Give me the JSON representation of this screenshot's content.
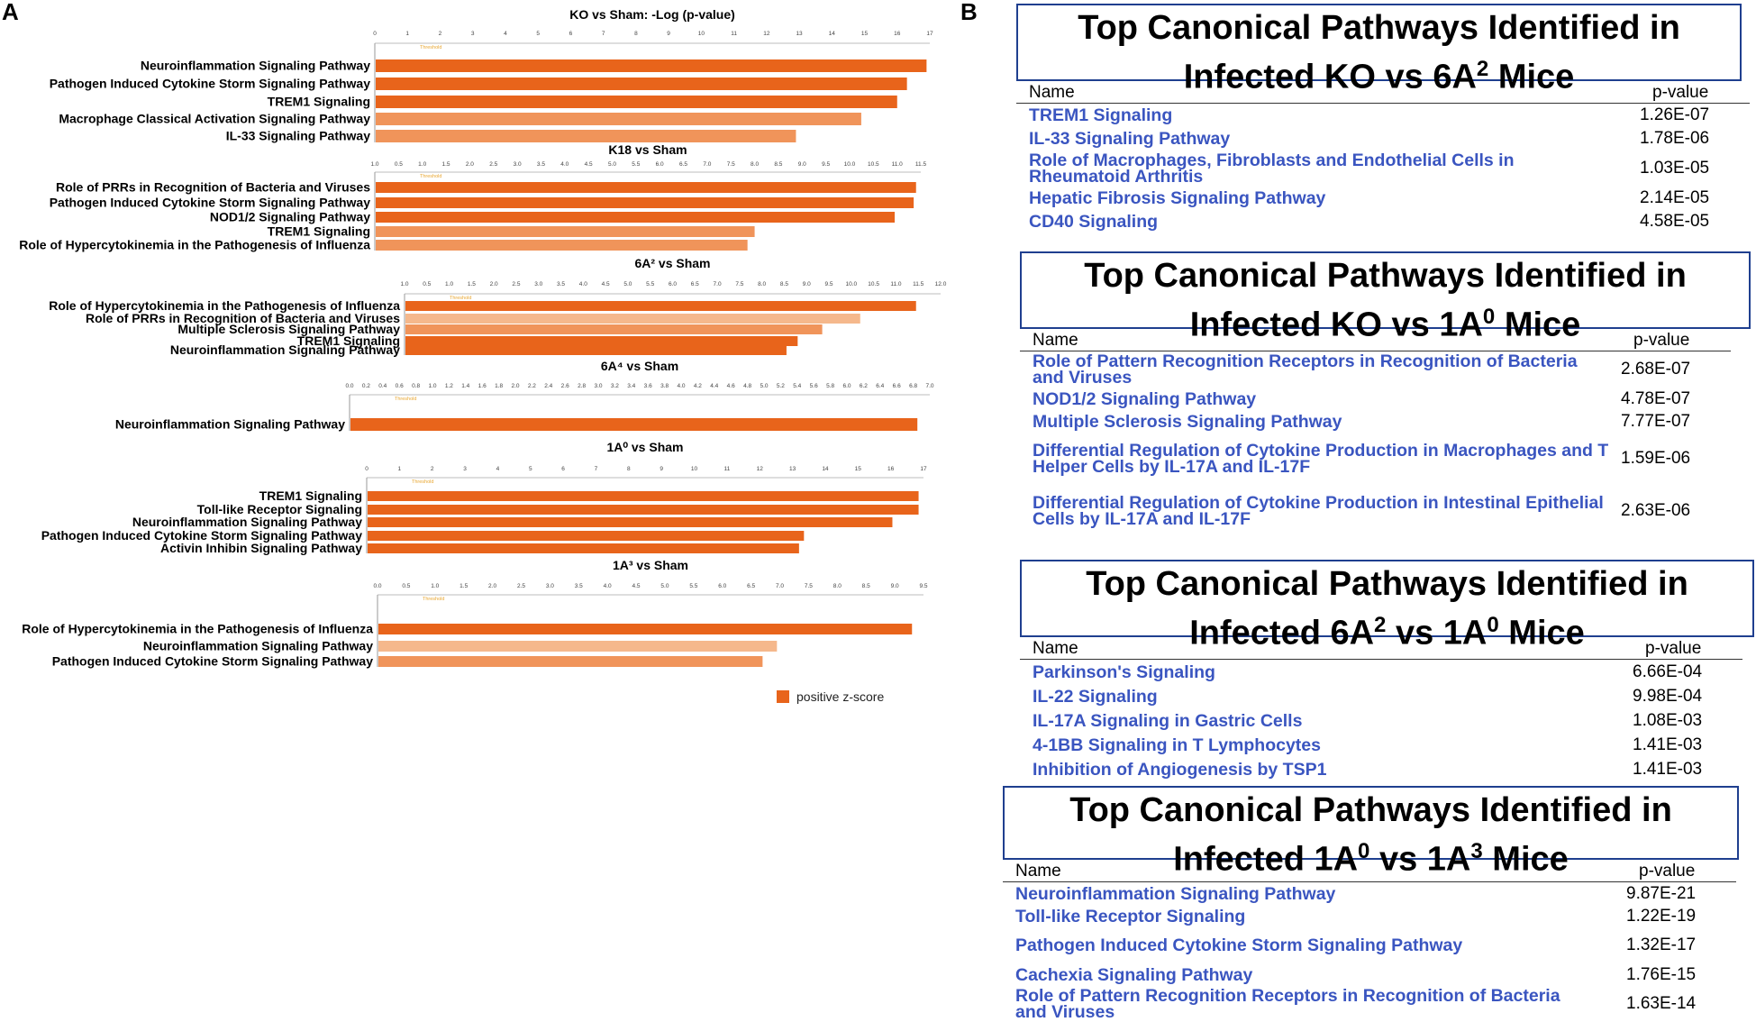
{
  "panel_a_letter": "A",
  "panel_b_letter": "B",
  "legend": {
    "label": "positive z-score",
    "color": "#E8641B"
  },
  "threshold_label": "Threshold",
  "chart_data": [
    {
      "type": "bar",
      "title": "KO vs Sham: -Log (p-value)",
      "ticks": [
        "0",
        "1",
        "2",
        "3",
        "4",
        "5",
        "6",
        "7",
        "8",
        "9",
        "10",
        "11",
        "12",
        "13",
        "14",
        "15",
        "16",
        "17"
      ],
      "xlim": [
        0,
        17
      ],
      "categories": [
        "Neuroinflammation Signaling Pathway",
        "Pathogen Induced Cytokine Storm Signaling Pathway",
        "TREM1 Signaling",
        "Macrophage Classical Activation Signaling Pathway",
        "IL-33 Signaling Pathway"
      ],
      "values": [
        16.9,
        16.3,
        16.0,
        14.9,
        12.9
      ],
      "colors": [
        "#E8641B",
        "#E8641B",
        "#E8641B",
        "#F0945A",
        "#F0945A"
      ]
    },
    {
      "type": "bar",
      "title": "K18 vs Sham",
      "ticks": [
        "1.0",
        "0.5",
        "1.0",
        "1.5",
        "2.0",
        "2.5",
        "3.0",
        "3.5",
        "4.0",
        "4.5",
        "5.0",
        "5.5",
        "6.0",
        "6.5",
        "7.0",
        "7.5",
        "8.0",
        "8.5",
        "9.0",
        "9.5",
        "10.0",
        "10.5",
        "11.0",
        "11.5"
      ],
      "xlim": [
        0,
        11.5
      ],
      "categories": [
        "Role of PRRs in Recognition of Bacteria and Viruses",
        "Pathogen Induced Cytokine Storm Signaling Pathway",
        "NOD1/2 Signaling Pathway",
        "TREM1 Signaling",
        "Role of Hypercytokinemia in the Pathogenesis of Influenza"
      ],
      "values": [
        11.4,
        11.35,
        10.95,
        8.0,
        7.85
      ],
      "colors": [
        "#E8641B",
        "#E8641B",
        "#E8641B",
        "#F0945A",
        "#F0945A"
      ]
    },
    {
      "type": "bar",
      "title": "6A² vs Sham",
      "ticks": [
        "1.0",
        "0.5",
        "1.0",
        "1.5",
        "2.0",
        "2.5",
        "3.0",
        "3.5",
        "4.0",
        "4.5",
        "5.0",
        "5.5",
        "6.0",
        "6.5",
        "7.0",
        "7.5",
        "8.0",
        "8.5",
        "9.0",
        "9.5",
        "10.0",
        "10.5",
        "11.0",
        "11.5",
        "12.0"
      ],
      "xlim": [
        0,
        12
      ],
      "categories": [
        "Role of Hypercytokinemia in the Pathogenesis of Influenza",
        "Role of PRRs in Recognition of Bacteria and Viruses",
        "Multiple Sclerosis Signaling Pathway",
        "TREM1 Signaling",
        "Neuroinflammation Signaling Pathway"
      ],
      "values": [
        11.45,
        10.2,
        9.35,
        8.8,
        8.55
      ],
      "colors": [
        "#E8641B",
        "#F5B88C",
        "#F0945A",
        "#E8641B",
        "#E8641B"
      ]
    },
    {
      "type": "bar",
      "title": "6A⁴ vs Sham",
      "ticks": [
        "0.0",
        "0.2",
        "0.4",
        "0.6",
        "0.8",
        "1.0",
        "1.2",
        "1.4",
        "1.6",
        "1.8",
        "2.0",
        "2.2",
        "2.4",
        "2.6",
        "2.8",
        "3.0",
        "3.2",
        "3.4",
        "3.6",
        "3.8",
        "4.0",
        "4.2",
        "4.4",
        "4.6",
        "4.8",
        "5.0",
        "5.2",
        "5.4",
        "5.6",
        "5.8",
        "6.0",
        "6.2",
        "6.4",
        "6.6",
        "6.8",
        "7.0"
      ],
      "xlim": [
        0,
        7
      ],
      "categories": [
        "Neuroinflammation Signaling Pathway"
      ],
      "values": [
        6.85
      ],
      "colors": [
        "#E8641B"
      ]
    },
    {
      "type": "bar",
      "title": "1A⁰ vs Sham",
      "ticks": [
        "0",
        "1",
        "2",
        "3",
        "4",
        "5",
        "6",
        "7",
        "8",
        "9",
        "10",
        "11",
        "12",
        "13",
        "14",
        "15",
        "16",
        "17"
      ],
      "xlim": [
        0,
        17
      ],
      "categories": [
        "TREM1 Signaling",
        "Toll-like Receptor Signaling",
        "Neuroinflammation Signaling Pathway",
        "Pathogen Induced Cytokine Storm Signaling Pathway",
        "Activin Inhibin Signaling Pathway"
      ],
      "values": [
        16.85,
        16.85,
        16.05,
        13.35,
        13.2
      ],
      "colors": [
        "#E8641B",
        "#E8641B",
        "#E8641B",
        "#E8641B",
        "#E8641B"
      ]
    },
    {
      "type": "bar",
      "title": "1A³ vs Sham",
      "ticks": [
        "0.0",
        "0.5",
        "1.0",
        "1.5",
        "2.0",
        "2.5",
        "3.0",
        "3.5",
        "4.0",
        "4.5",
        "5.0",
        "5.5",
        "6.0",
        "6.5",
        "7.0",
        "7.5",
        "8.0",
        "8.5",
        "9.0",
        "9.5"
      ],
      "xlim": [
        0,
        9.5
      ],
      "categories": [
        "Role of Hypercytokinemia in the Pathogenesis of Influenza",
        "Neuroinflammation Signaling Pathway",
        "Pathogen Induced Cytokine Storm Signaling Pathway"
      ],
      "values": [
        9.3,
        6.95,
        6.7
      ],
      "colors": [
        "#E8641B",
        "#F5B88C",
        "#F0945A"
      ]
    }
  ],
  "tables": [
    {
      "title_line1": "Top Canonical Pathways Identified in",
      "t2_pre": "Infected KO vs 6A",
      "t2_sup1": "2",
      "t2_mid": "",
      "t2_sup2": "",
      "t2_post": " Mice",
      "col_name": "Name",
      "col_pvalue": "p-value",
      "rows": [
        {
          "name": "TREM1 Signaling",
          "pvalue": "1.26E-07"
        },
        {
          "name": "IL-33 Signaling Pathway",
          "pvalue": "1.78E-06"
        },
        {
          "name": "Role of Macrophages, Fibroblasts and Endothelial Cells in Rheumatoid Arthritis",
          "pvalue": "1.03E-05"
        },
        {
          "name": "Hepatic Fibrosis Signaling Pathway",
          "pvalue": "2.14E-05"
        },
        {
          "name": "CD40 Signaling",
          "pvalue": "4.58E-05"
        }
      ]
    },
    {
      "title_line1": "Top Canonical Pathways Identified in",
      "t2_pre": "Infected KO vs 1A",
      "t2_sup1": "0",
      "t2_mid": "",
      "t2_sup2": "",
      "t2_post": " Mice",
      "col_name": "Name",
      "col_pvalue": "p-value",
      "rows": [
        {
          "name": "Role of Pattern Recognition Receptors in Recognition of Bacteria and Viruses",
          "pvalue": "2.68E-07"
        },
        {
          "name": "NOD1/2 Signaling Pathway",
          "pvalue": "4.78E-07"
        },
        {
          "name": "Multiple Sclerosis Signaling Pathway",
          "pvalue": "7.77E-07"
        },
        {
          "name": "Differential Regulation of Cytokine Production in Macrophages and T Helper Cells by IL-17A and IL-17F",
          "pvalue": "1.59E-06"
        },
        {
          "name": "Differential Regulation of Cytokine Production in Intestinal Epithelial Cells by IL-17A and IL-17F",
          "pvalue": "2.63E-06"
        }
      ]
    },
    {
      "title_line1": "Top Canonical Pathways Identified in",
      "t2_pre": "Infected 6A",
      "t2_sup1": "2",
      "t2_mid": " vs 1A",
      "t2_sup2": "0",
      "t2_post": " Mice",
      "col_name": "Name",
      "col_pvalue": "p-value",
      "rows": [
        {
          "name": "Parkinson's Signaling",
          "pvalue": "6.66E-04"
        },
        {
          "name": "IL-22 Signaling",
          "pvalue": "9.98E-04"
        },
        {
          "name": "IL-17A Signaling in Gastric Cells",
          "pvalue": "1.08E-03"
        },
        {
          "name": "4-1BB Signaling in T Lymphocytes",
          "pvalue": "1.41E-03"
        },
        {
          "name": "Inhibition of Angiogenesis by TSP1",
          "pvalue": "1.41E-03"
        }
      ]
    },
    {
      "title_line1": "Top Canonical Pathways Identified in",
      "t2_pre": "Infected 1A",
      "t2_sup1": "0",
      "t2_mid": " vs 1A",
      "t2_sup2": "3",
      "t2_post": " Mice",
      "col_name": "Name",
      "col_pvalue": "p-value",
      "rows": [
        {
          "name": "Neuroinflammation Signaling Pathway",
          "pvalue": "9.87E-21"
        },
        {
          "name": "Toll-like Receptor Signaling",
          "pvalue": "1.22E-19"
        },
        {
          "name": "Pathogen Induced Cytokine Storm Signaling Pathway",
          "pvalue": "1.32E-17"
        },
        {
          "name": "Cachexia Signaling Pathway",
          "pvalue": "1.76E-15"
        },
        {
          "name": "Role of Pattern Recognition Receptors in Recognition of Bacteria and Viruses",
          "pvalue": "1.63E-14"
        }
      ]
    }
  ]
}
